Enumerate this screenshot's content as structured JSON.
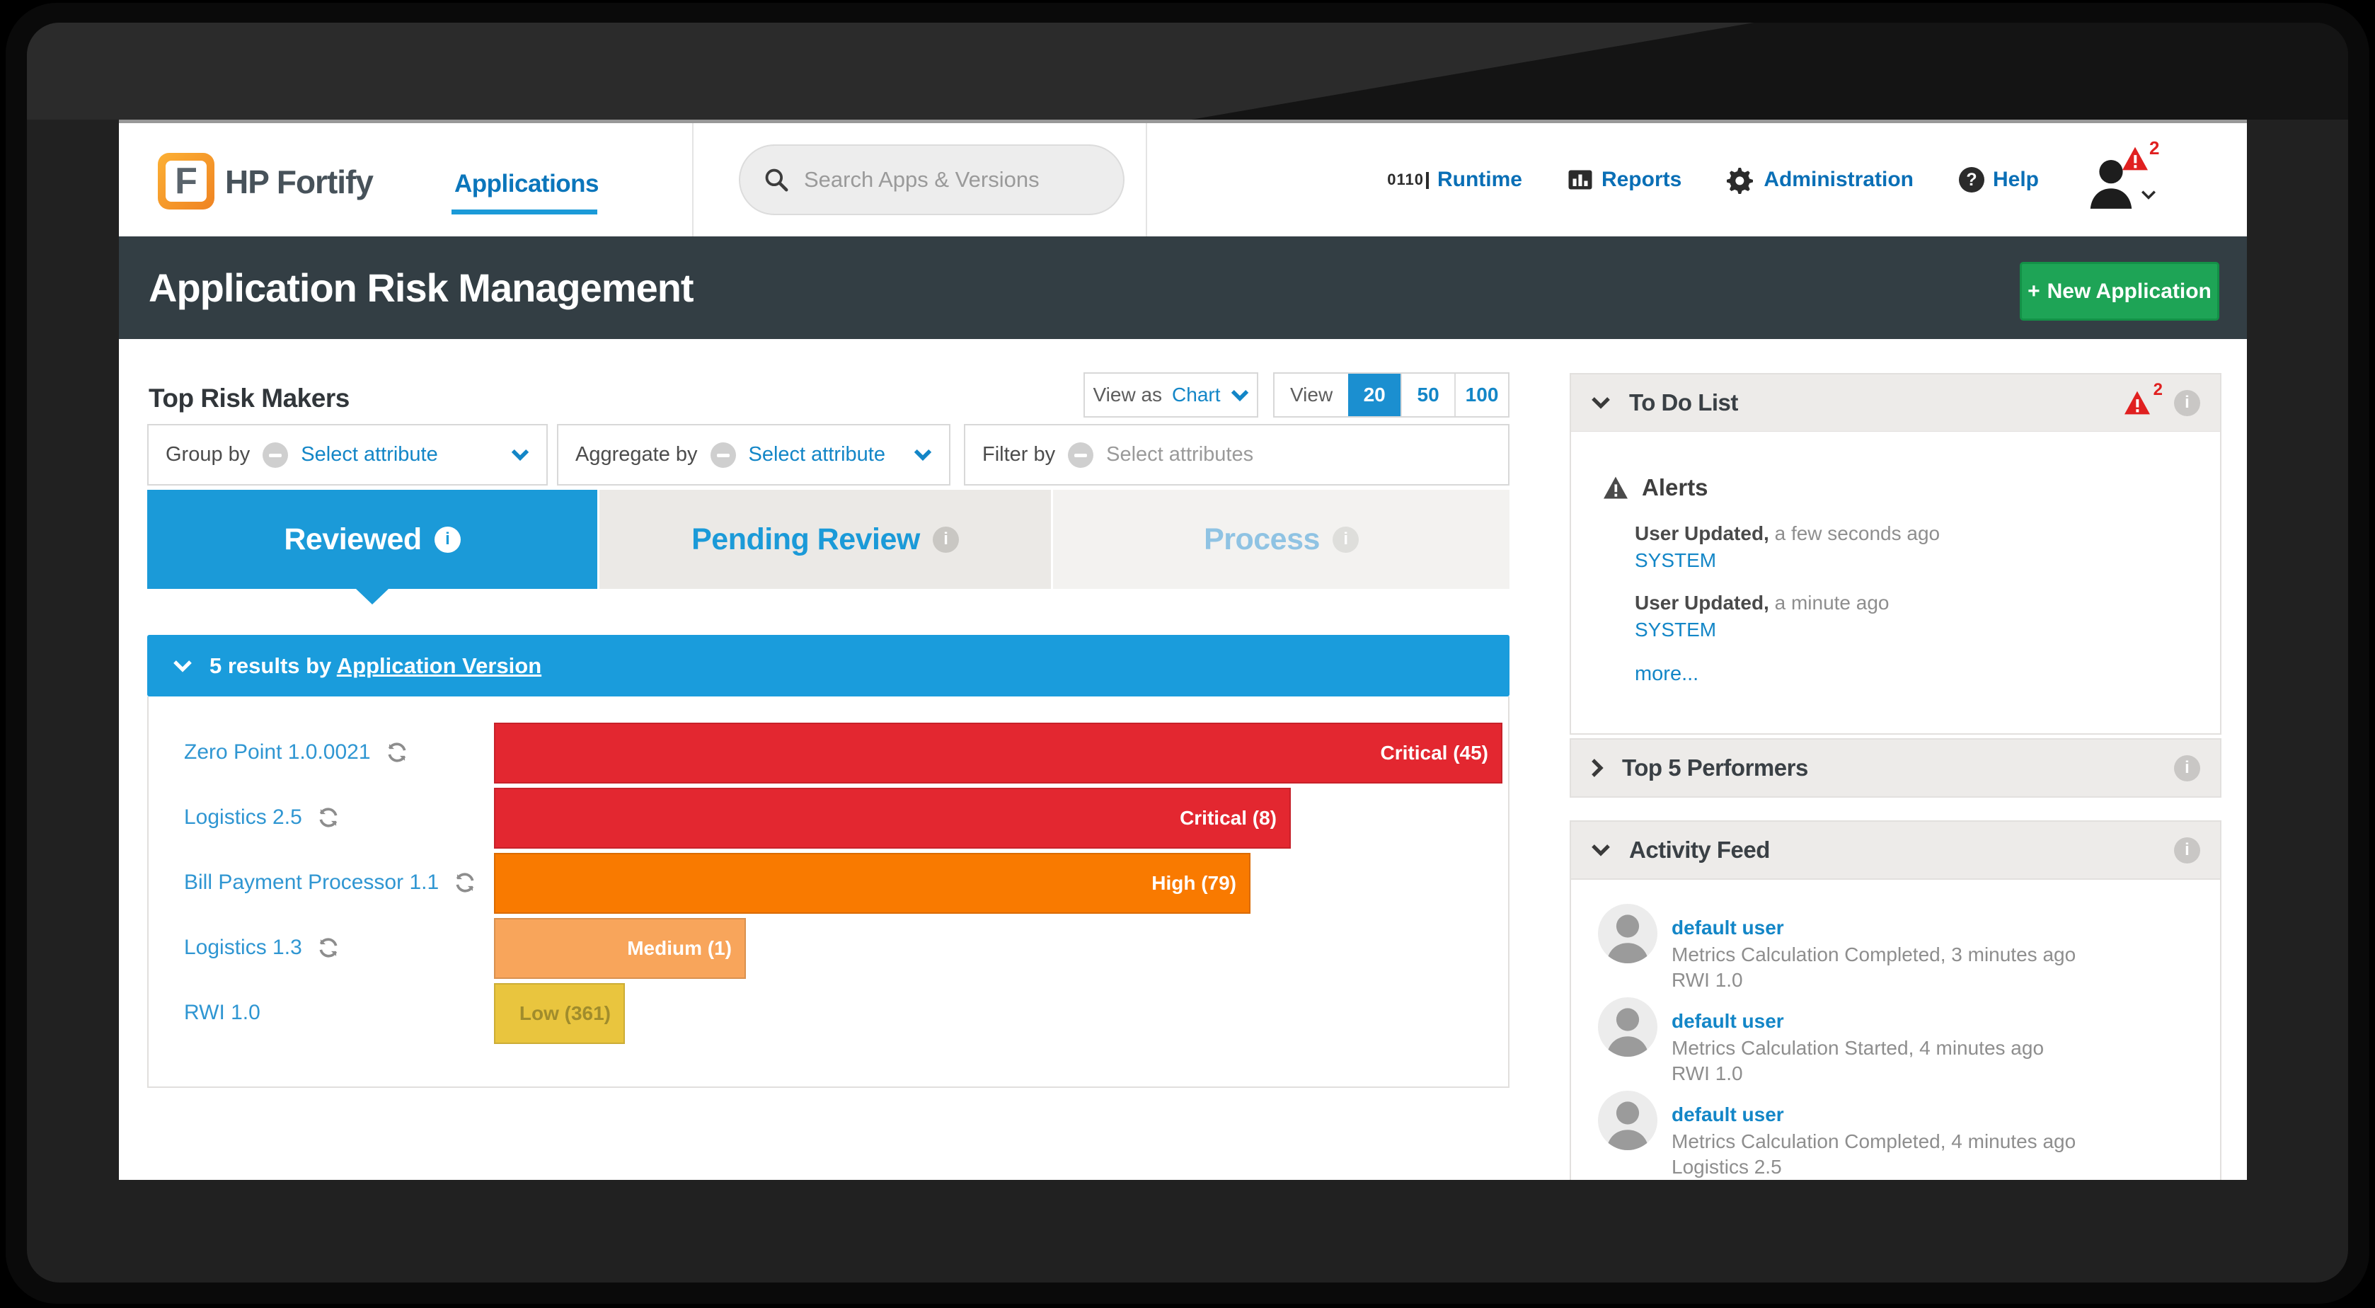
{
  "colors": {
    "accent_blue": "#1b9ad8",
    "results_blue": "#1a9cdc",
    "link_blue": "#1386c7",
    "nav_blue": "#0a6fb6",
    "critical": "#e32730",
    "high": "#f97a00",
    "medium": "#f8a55b",
    "low": "#e9c53e",
    "green": "#1ea456",
    "titlebar_dark": "#333e44",
    "alert_red": "#e02020"
  },
  "header": {
    "logo_letter": "F",
    "brand": "HP Fortify",
    "nav_applications": "Applications",
    "search_placeholder": "Search Apps & Versions",
    "runtime_icon_text": "0110",
    "nav_runtime": "Runtime",
    "nav_reports": "Reports",
    "nav_administration": "Administration",
    "nav_help": "Help",
    "user_alert_count": "2"
  },
  "title_bar": {
    "title": "Application Risk Management",
    "new_application": "New Application",
    "new_application_plus": "+"
  },
  "toolbar": {
    "section_title": "Top Risk Makers",
    "view_as_label": "View as",
    "view_as_value": "Chart",
    "view_label": "View",
    "view_options": [
      "20",
      "50",
      "100"
    ],
    "view_selected": "20"
  },
  "filters": {
    "group_by_label": "Group by",
    "group_by_value": "Select attribute",
    "aggregate_by_label": "Aggregate by",
    "aggregate_by_value": "Select attribute",
    "filter_by_label": "Filter by",
    "filter_by_placeholder": "Select attributes"
  },
  "tabs": [
    {
      "label": "Reviewed",
      "state": "active"
    },
    {
      "label": "Pending Review",
      "state": "inactive"
    },
    {
      "label": "Process",
      "state": "disabled"
    }
  ],
  "results_bar": {
    "prefix": "5 results by",
    "link": "Application Version"
  },
  "chart_data": {
    "type": "bar",
    "title": "Top Risk Makers — Reviewed (5 results by Application Version)",
    "categories": [
      "Zero Point 1.0.0021",
      "Logistics 2.5",
      "Bill Payment Processor 1.1",
      "Logistics 1.3",
      "RWI 1.0"
    ],
    "series": [
      {
        "name": "risk-bar-relative-length-pct",
        "values": [
          100,
          79,
          75,
          25,
          13
        ]
      },
      {
        "name": "issue-count",
        "values": [
          45,
          8,
          79,
          1,
          361
        ]
      }
    ],
    "bar_labels": [
      "Critical (45)",
      "Critical (8)",
      "High (79)",
      "Medium (1)",
      "Low (361)"
    ],
    "severities": [
      "critical",
      "critical",
      "high",
      "medium",
      "low"
    ],
    "orientation": "horizontal",
    "grid": false,
    "legend": false
  },
  "chart": {
    "rows": [
      {
        "app": "Zero Point 1.0.0021",
        "badge": "Critical (45)",
        "severity": "critical",
        "width_pct": 100,
        "refresh": true,
        "badge_text": "#ffffff"
      },
      {
        "app": "Logistics 2.5",
        "badge": "Critical (8)",
        "severity": "critical",
        "width_pct": 79,
        "refresh": true,
        "badge_text": "#ffffff"
      },
      {
        "app": "Bill Payment Processor 1.1",
        "badge": "High (79)",
        "severity": "high",
        "width_pct": 75,
        "refresh": true,
        "badge_text": "#ffffff"
      },
      {
        "app": "Logistics 1.3",
        "badge": "Medium (1)",
        "severity": "medium",
        "width_pct": 25,
        "refresh": true,
        "badge_text": "#ffffff"
      },
      {
        "app": "RWI 1.0",
        "badge": "Low (361)",
        "severity": "low",
        "width_pct": 13,
        "refresh": false,
        "badge_text": "#a08c2c"
      }
    ]
  },
  "todo": {
    "title": "To Do List",
    "badge": "2",
    "alerts_title": "Alerts",
    "alerts": [
      {
        "bold": "User Updated,",
        "time": " a few seconds ago",
        "link": "SYSTEM"
      },
      {
        "bold": "User Updated,",
        "time": " a minute ago",
        "link": "SYSTEM"
      }
    ],
    "more": "more..."
  },
  "top5": {
    "title": "Top 5 Performers"
  },
  "feed": {
    "title": "Activity Feed",
    "items": [
      {
        "user": "default user",
        "text": "Metrics Calculation Completed, 3 minutes ago",
        "app": "RWI 1.0"
      },
      {
        "user": "default user",
        "text": "Metrics Calculation Started, 4 minutes ago",
        "app": "RWI 1.0"
      },
      {
        "user": "default user",
        "text": "Metrics Calculation Completed, 4 minutes ago",
        "app": "Logistics 2.5"
      }
    ]
  }
}
